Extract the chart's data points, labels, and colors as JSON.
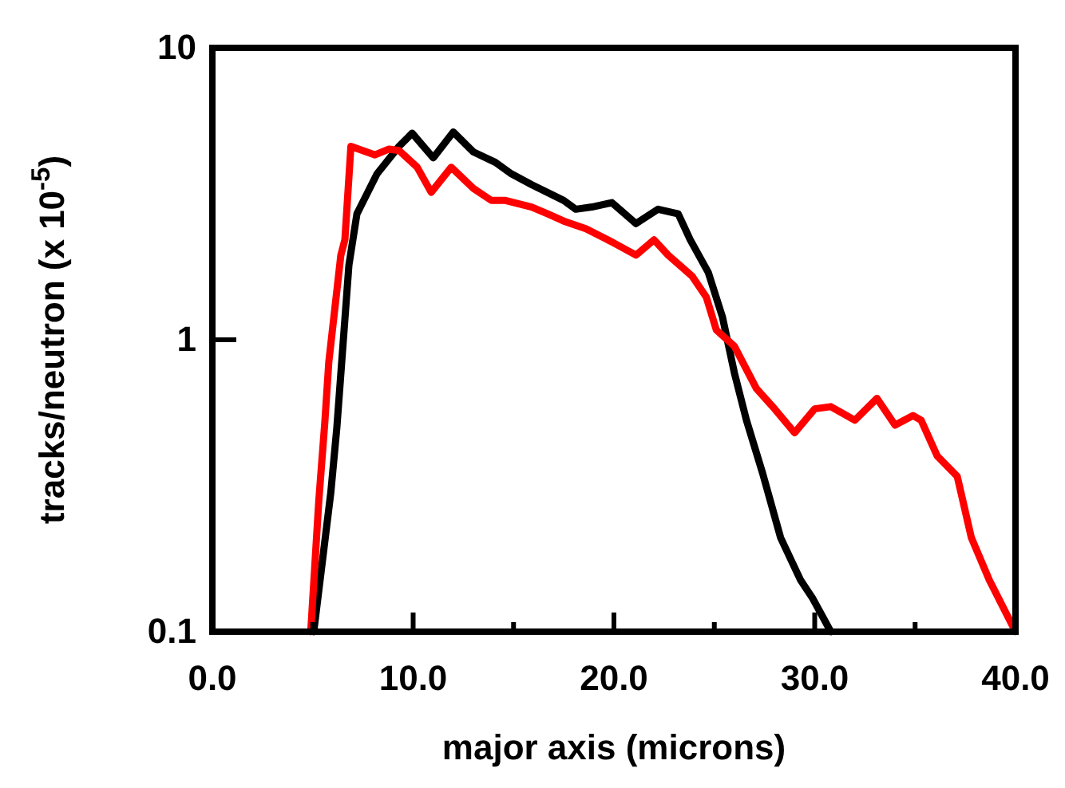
{
  "chart_data": {
    "type": "line",
    "xlabel": "major axis (microns)",
    "ylabel": "tracks/neutron (x 10$^{-5}$)",
    "log": "y",
    "grid": false,
    "marker": "none",
    "line_style": "solid",
    "xlim": [
      0,
      40
    ],
    "ylim": [
      0.1,
      10
    ],
    "xticks": [
      {
        "value": 0,
        "label": "0.0"
      },
      {
        "value": 5,
        "label": null
      },
      {
        "value": 10,
        "label": "10.0"
      },
      {
        "value": 15,
        "label": null
      },
      {
        "value": 20,
        "label": "20.0"
      },
      {
        "value": 25,
        "label": null
      },
      {
        "value": 30,
        "label": "30.0"
      },
      {
        "value": 35,
        "label": null
      },
      {
        "value": 40,
        "label": "40.0"
      }
    ],
    "yticks": [
      0.1,
      1,
      10
    ],
    "series": [
      {
        "color": "#000000",
        "x": [
          5.05,
          5.9,
          6.2,
          6.8,
          7.2,
          8.2,
          9.3,
          9.95,
          11.0,
          12.0,
          13.0,
          14.1,
          14.9,
          15.9,
          17.5,
          18.1,
          18.9,
          19.9,
          21.1,
          22.2,
          23.2,
          23.8,
          24.7,
          25.4,
          26.0,
          26.6,
          27.4,
          28.3,
          29.3,
          29.9,
          30.8
        ],
        "values": [
          0.1,
          0.3,
          0.5,
          1.8,
          2.7,
          3.7,
          4.6,
          5.1,
          4.2,
          5.15,
          4.4,
          4.05,
          3.7,
          3.4,
          3.0,
          2.8,
          2.85,
          2.95,
          2.5,
          2.8,
          2.7,
          2.2,
          1.7,
          1.2,
          0.77,
          0.53,
          0.35,
          0.21,
          0.15,
          0.13,
          0.1
        ]
      },
      {
        "color": "#ff0000",
        "x": [
          4.9,
          5.3,
          5.6,
          5.8,
          6.4,
          6.6,
          6.9,
          8.1,
          8.8,
          9.3,
          10.2,
          10.9,
          11.9,
          13.0,
          13.9,
          14.6,
          15.9,
          16.7,
          17.5,
          18.6,
          19.7,
          21.1,
          22.0,
          22.7,
          23.9,
          24.6,
          25.1,
          26.0,
          27.1,
          28.0,
          29.0,
          30.0,
          30.8,
          32.0,
          33.1,
          34.0,
          34.9,
          35.3,
          36.1,
          37.1,
          37.8,
          38.7,
          40.0
        ],
        "values": [
          0.1,
          0.28,
          0.52,
          0.84,
          1.95,
          2.2,
          4.6,
          4.3,
          4.5,
          4.45,
          3.9,
          3.2,
          3.9,
          3.3,
          3.0,
          3.0,
          2.85,
          2.7,
          2.55,
          2.4,
          2.2,
          1.95,
          2.2,
          1.95,
          1.65,
          1.4,
          1.08,
          0.95,
          0.68,
          0.58,
          0.48,
          0.58,
          0.59,
          0.53,
          0.63,
          0.51,
          0.55,
          0.53,
          0.4,
          0.34,
          0.21,
          0.15,
          0.1
        ]
      }
    ]
  }
}
